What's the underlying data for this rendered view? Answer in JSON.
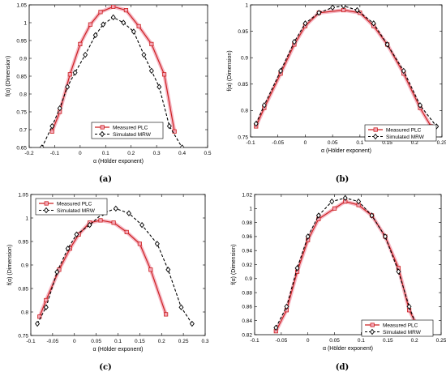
{
  "figure": {
    "colors": {
      "measured": "#cc2222",
      "measured_glow": "#f4a6b6",
      "simulated": "#000000"
    }
  },
  "chart_data": [
    {
      "type": "line",
      "panel_label": "(a)",
      "xlabel": "α (Hölder exponent)",
      "ylabel": "f(α) (Dimension)",
      "xlim": [
        -0.2,
        0.5
      ],
      "ylim": [
        0.65,
        1.05
      ],
      "xticks": [
        -0.2,
        -0.1,
        0,
        0.1,
        0.2,
        0.3,
        0.4,
        0.5
      ],
      "xtick_labels": [
        "-0.2",
        "-0.1",
        "0",
        "0.1",
        "0.2",
        "0.3",
        "0.4",
        "0.5"
      ],
      "yticks": [
        0.65,
        0.7,
        0.75,
        0.8,
        0.85,
        0.9,
        0.95,
        1.0,
        1.05
      ],
      "ytick_labels": [
        "0.65",
        "0.7",
        "0.75",
        "0.8",
        "0.85",
        "0.9",
        "0.95",
        "1",
        "1.05"
      ],
      "legend": {
        "position": "bottom-center",
        "entries": [
          "Measured PLC",
          "Simulated MRW"
        ]
      },
      "series": [
        {
          "name": "Measured PLC",
          "style": "measured",
          "x": [
            -0.11,
            -0.08,
            -0.04,
            0.0,
            0.04,
            0.08,
            0.13,
            0.18,
            0.23,
            0.28,
            0.33,
            0.37
          ],
          "y": [
            0.695,
            0.75,
            0.855,
            0.94,
            0.995,
            1.03,
            1.045,
            1.035,
            0.99,
            0.94,
            0.855,
            0.695
          ]
        },
        {
          "name": "Simulated MRW",
          "style": "simulated",
          "x": [
            -0.15,
            -0.11,
            -0.08,
            -0.05,
            -0.02,
            0.02,
            0.06,
            0.09,
            0.13,
            0.17,
            0.21,
            0.25,
            0.28,
            0.31,
            0.35,
            0.4
          ],
          "y": [
            0.65,
            0.71,
            0.76,
            0.82,
            0.86,
            0.91,
            0.965,
            0.995,
            1.015,
            1.0,
            0.975,
            0.91,
            0.865,
            0.82,
            0.71,
            0.65
          ]
        }
      ]
    },
    {
      "type": "line",
      "panel_label": "(b)",
      "xlabel": "α (Hölder exponent)",
      "ylabel": "f(α) (Dimension)",
      "xlim": [
        -0.1,
        0.25
      ],
      "ylim": [
        0.75,
        1.0
      ],
      "xticks": [
        -0.1,
        -0.05,
        0,
        0.05,
        0.1,
        0.15,
        0.2,
        0.25
      ],
      "xtick_labels": [
        "-0.1",
        "-0.05",
        "0",
        "0.05",
        "0.1",
        "0.15",
        "0.2",
        "0.25"
      ],
      "yticks": [
        0.75,
        0.8,
        0.85,
        0.9,
        0.95,
        1.0
      ],
      "ytick_labels": [
        "0.75",
        "0.8",
        "0.85",
        "0.9",
        "0.95",
        "1"
      ],
      "legend": {
        "position": "bottom-right",
        "entries": [
          "Measured PLC",
          "Simulated MRW"
        ]
      },
      "series": [
        {
          "name": "Measured PLC",
          "style": "measured",
          "x": [
            -0.09,
            -0.075,
            -0.045,
            -0.02,
            0.0,
            0.025,
            0.07,
            0.1,
            0.125,
            0.15,
            0.18,
            0.21,
            0.23
          ],
          "y": [
            0.77,
            0.805,
            0.87,
            0.925,
            0.96,
            0.985,
            0.99,
            0.985,
            0.96,
            0.925,
            0.87,
            0.805,
            0.77
          ]
        },
        {
          "name": "Simulated MRW",
          "style": "simulated",
          "x": [
            -0.09,
            -0.075,
            -0.045,
            -0.02,
            0.0,
            0.025,
            0.05,
            0.07,
            0.095,
            0.125,
            0.15,
            0.18,
            0.21,
            0.24
          ],
          "y": [
            0.775,
            0.81,
            0.875,
            0.93,
            0.965,
            0.985,
            0.995,
            0.998,
            0.99,
            0.965,
            0.925,
            0.875,
            0.81,
            0.77
          ]
        }
      ]
    },
    {
      "type": "line",
      "panel_label": "(c)",
      "xlabel": "α (Hölder exponent)",
      "ylabel": "f(α) (Dimension)",
      "xlim": [
        -0.1,
        0.3
      ],
      "ylim": [
        0.75,
        1.05
      ],
      "xticks": [
        -0.1,
        -0.05,
        0,
        0.05,
        0.1,
        0.15,
        0.2,
        0.25,
        0.3
      ],
      "xtick_labels": [
        "-0.1",
        "-0.05",
        "0",
        "0.05",
        "0.1",
        "0.15",
        "0.2",
        "0.25",
        "0.3"
      ],
      "yticks": [
        0.75,
        0.8,
        0.85,
        0.9,
        0.95,
        1.0,
        1.05
      ],
      "ytick_labels": [
        "0.75",
        "0.8",
        "0.85",
        "0.9",
        "0.95",
        "1",
        "1.05"
      ],
      "legend": {
        "position": "top-left",
        "entries": [
          "Measured PLC",
          "Simulated MRW"
        ]
      },
      "series": [
        {
          "name": "Measured PLC",
          "style": "measured",
          "x": [
            -0.08,
            -0.065,
            -0.035,
            -0.01,
            0.01,
            0.035,
            0.06,
            0.09,
            0.12,
            0.15,
            0.175,
            0.21
          ],
          "y": [
            0.79,
            0.825,
            0.89,
            0.935,
            0.965,
            0.99,
            0.995,
            0.99,
            0.97,
            0.945,
            0.89,
            0.795
          ]
        },
        {
          "name": "Simulated MRW",
          "style": "simulated",
          "x": [
            -0.085,
            -0.065,
            -0.04,
            -0.015,
            0.005,
            0.035,
            0.065,
            0.095,
            0.125,
            0.155,
            0.19,
            0.215,
            0.245,
            0.27
          ],
          "y": [
            0.775,
            0.81,
            0.885,
            0.935,
            0.965,
            0.985,
            1.01,
            1.02,
            1.01,
            0.985,
            0.945,
            0.89,
            0.81,
            0.775
          ]
        }
      ]
    },
    {
      "type": "line",
      "panel_label": "(d)",
      "xlabel": "α (Hölder exponent)",
      "ylabel": "f(α) (Dimension)",
      "xlim": [
        -0.1,
        0.25
      ],
      "ylim": [
        0.82,
        1.02
      ],
      "xticks": [
        -0.1,
        -0.05,
        0,
        0.05,
        0.1,
        0.15,
        0.2,
        0.25
      ],
      "xtick_labels": [
        "-0.1",
        "-0.05",
        "0",
        "0.05",
        "0.1",
        "0.15",
        "0.2",
        "0.25"
      ],
      "yticks": [
        0.82,
        0.84,
        0.86,
        0.88,
        0.9,
        0.92,
        0.94,
        0.96,
        0.98,
        1.0,
        1.02
      ],
      "ytick_labels": [
        "0.82",
        "0.84",
        "0.86",
        "0.88",
        "0.9",
        "0.92",
        "0.94",
        "0.96",
        "0.98",
        "1",
        "1.02"
      ],
      "legend": {
        "position": "bottom-right",
        "entries": [
          "Measured PLC",
          "Simulated MRW"
        ]
      },
      "series": [
        {
          "name": "Measured PLC",
          "style": "measured",
          "x": [
            -0.06,
            -0.04,
            -0.02,
            0.0,
            0.02,
            0.05,
            0.07,
            0.095,
            0.12,
            0.145,
            0.17,
            0.19,
            0.21
          ],
          "y": [
            0.825,
            0.855,
            0.91,
            0.955,
            0.985,
            1.0,
            1.01,
            1.005,
            0.99,
            0.96,
            0.915,
            0.855,
            0.825
          ]
        },
        {
          "name": "Simulated MRW",
          "style": "simulated",
          "x": [
            -0.06,
            -0.04,
            -0.02,
            0.0,
            0.02,
            0.045,
            0.07,
            0.095,
            0.12,
            0.145,
            0.17,
            0.19,
            0.21
          ],
          "y": [
            0.83,
            0.86,
            0.915,
            0.96,
            0.99,
            1.01,
            1.015,
            1.01,
            0.99,
            0.96,
            0.91,
            0.86,
            0.82
          ]
        }
      ]
    }
  ]
}
